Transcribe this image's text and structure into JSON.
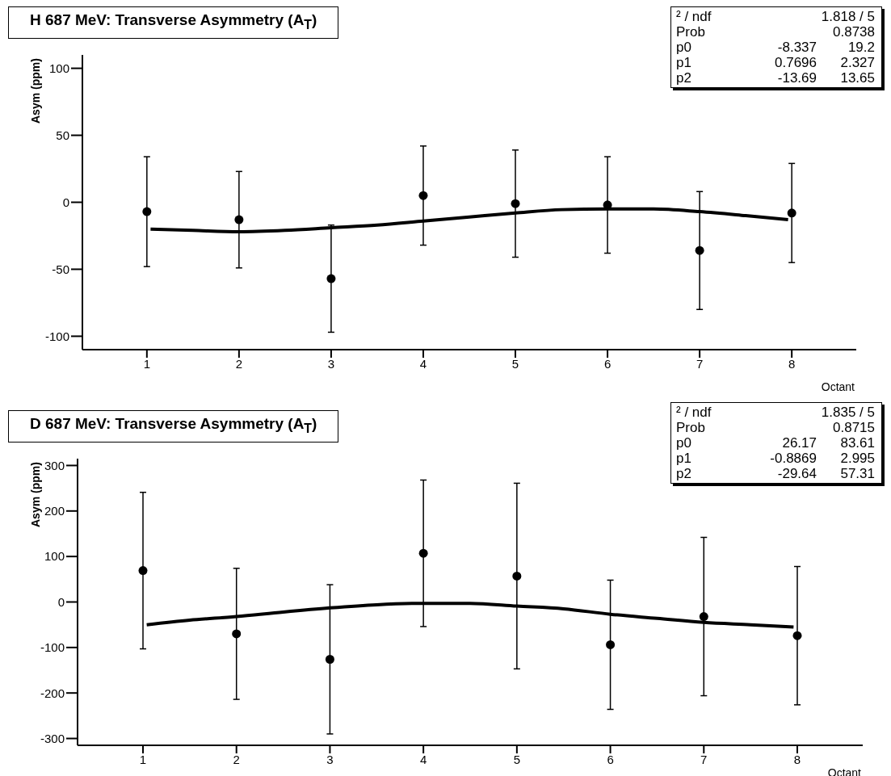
{
  "chart_data": [
    {
      "type": "scatter",
      "title": "H 687 MeV: Transverse Asymmetry (A$_{T}$)",
      "xlabel": "Octant",
      "ylabel": "Asym (ppm)",
      "xlim": [
        0.3,
        8.7
      ],
      "xticks": [
        1,
        2,
        3,
        4,
        5,
        6,
        7,
        8
      ],
      "ylim": [
        -110,
        110
      ],
      "yticks": [
        -100,
        -50,
        0,
        50,
        100
      ],
      "grid": false,
      "legend": false,
      "annotations": [
        "² / ndf",
        "1.818 / 5",
        "Prob",
        "0.8738",
        "p0",
        "-8.337",
        "19.2",
        "p1",
        "0.7696",
        "2.327",
        "p2",
        "-13.69",
        "13.65"
      ],
      "series": [
        {
          "color": "#000000",
          "marker": "circle",
          "x": [
            1,
            2,
            3,
            4,
            5,
            6,
            7,
            8
          ],
          "values": [
            -7,
            -13,
            -57,
            5,
            -1,
            -2,
            -36,
            -8
          ],
          "errors": [
            41,
            36,
            40,
            37,
            40,
            36,
            44,
            37
          ]
        },
        {
          "type": "line",
          "color": "#000000",
          "x": [
            1.04,
            1.5,
            2,
            2.5,
            3,
            3.5,
            4,
            4.5,
            5,
            5.5,
            6,
            6.5,
            7,
            7.5,
            7.96
          ],
          "values": [
            -20,
            -21,
            -22,
            -21,
            -19,
            -17,
            -14,
            -11,
            -8,
            -5.5,
            -5,
            -5,
            -7,
            -10,
            -13
          ]
        }
      ]
    },
    {
      "type": "scatter",
      "title": "D 687 MeV: Transverse Asymmetry (A$_{T}$)",
      "xlabel": "Octant",
      "ylabel": "Asym (ppm)",
      "xlim": [
        0.3,
        8.7
      ],
      "xticks": [
        1,
        2,
        3,
        4,
        5,
        6,
        7,
        8
      ],
      "ylim": [
        -315,
        315
      ],
      "yticks": [
        -300,
        -200,
        -100,
        0,
        100,
        200,
        300
      ],
      "grid": false,
      "legend": false,
      "annotations": [
        "² / ndf",
        "1.835 / 5",
        "Prob",
        "0.8715",
        "p0",
        "26.17",
        "83.61",
        "p1",
        "-0.8869",
        "2.995",
        "p2",
        "-29.64",
        "57.31"
      ],
      "series": [
        {
          "color": "#000000",
          "marker": "circle",
          "x": [
            1,
            2,
            3,
            4,
            5,
            6,
            7,
            8
          ],
          "values": [
            69,
            -70,
            -126,
            107,
            57,
            -94,
            -32,
            -74
          ],
          "errors": [
            172,
            144,
            164,
            161,
            204,
            142,
            174,
            152
          ]
        },
        {
          "type": "line",
          "color": "#000000",
          "x": [
            1.04,
            1.5,
            2,
            2.5,
            3,
            3.5,
            4,
            4.5,
            5,
            5.5,
            6,
            6.5,
            7,
            7.5,
            7.96
          ],
          "values": [
            -50,
            -40,
            -32,
            -22,
            -13,
            -6,
            -3,
            -3,
            -9,
            -15,
            -27,
            -36,
            -45,
            -50,
            -55
          ]
        }
      ]
    }
  ]
}
